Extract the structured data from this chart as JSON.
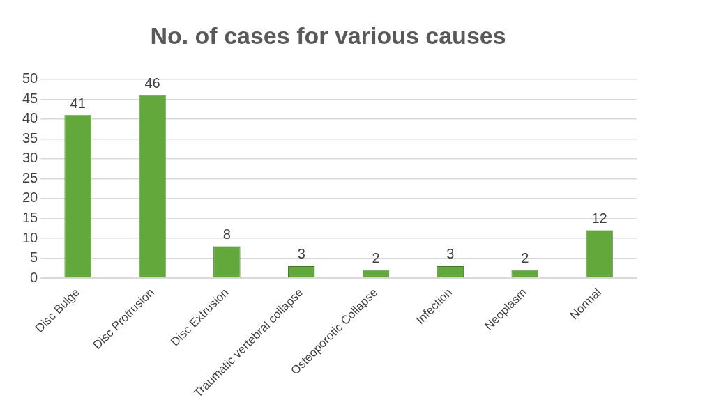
{
  "chart_data": {
    "type": "bar",
    "title": "No. of cases for various causes",
    "categories": [
      "Disc Bulge",
      "Disc Protrusion",
      "Disc Extrusion",
      "Traumatic vertebral collapse",
      "Osteoporotic Collapse",
      "Infection",
      "Neoplasm",
      "Normal"
    ],
    "values": [
      41,
      46,
      8,
      3,
      2,
      3,
      2,
      12
    ],
    "color": "#62a83a",
    "ylim": [
      0,
      50
    ],
    "yticks": [
      0,
      5,
      10,
      15,
      20,
      25,
      30,
      35,
      40,
      45,
      50
    ],
    "grid": "y",
    "data_labels": true
  }
}
